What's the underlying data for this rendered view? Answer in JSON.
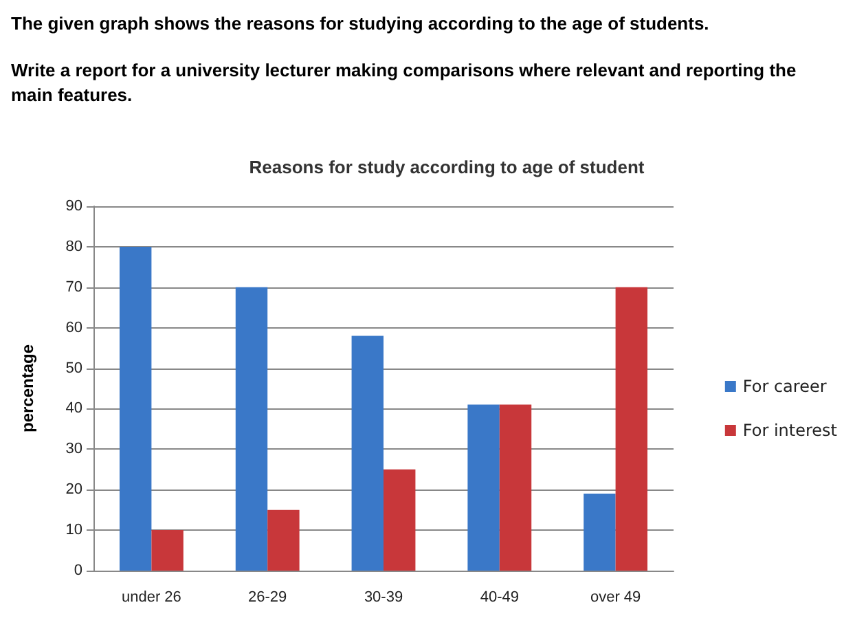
{
  "chart_data": {
    "type": "bar",
    "title": "Reasons for study according to age of student",
    "ylabel": "percentage",
    "annotations": [
      "The given graph shows the reasons for studying according to the age of students.",
      "Write a report for a university lecturer making comparisons where relevant and reporting the main features."
    ],
    "categories": [
      "under 26",
      "26-29",
      "30-39",
      "40-49",
      "over 49"
    ],
    "series": [
      {
        "name": "For career",
        "color": "#3a78c8",
        "values": [
          80,
          70,
          58,
          41,
          19
        ]
      },
      {
        "name": "For interest",
        "color": "#c8373a",
        "values": [
          10,
          15,
          25,
          41,
          70
        ]
      }
    ],
    "ylim": [
      0,
      90
    ],
    "yticks": [
      0,
      10,
      20,
      30,
      40,
      50,
      60,
      70,
      80,
      90
    ],
    "grid": "y",
    "legend": "right"
  }
}
